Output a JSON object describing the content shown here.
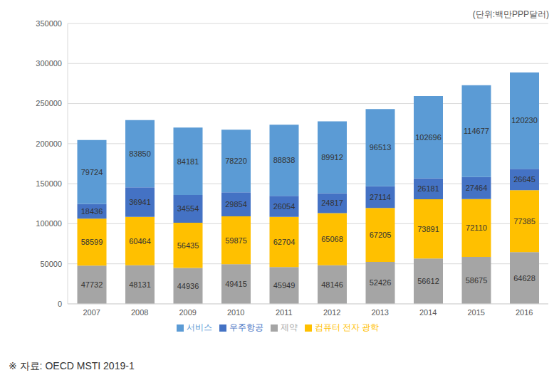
{
  "chart_data": {
    "type": "bar",
    "subtitle": "(단위:백만PPP달러)",
    "annotations": [
      "※ 자료: OECD MSTI 2019-1"
    ],
    "categories": [
      "2007",
      "2008",
      "2009",
      "2010",
      "2011",
      "2012",
      "2013",
      "2014",
      "2015",
      "2016"
    ],
    "series": [
      {
        "name": "제약",
        "color": "#a5a5a5",
        "values": [
          47732,
          48131,
          44936,
          49415,
          45949,
          48146,
          52426,
          56612,
          58675,
          64628
        ]
      },
      {
        "name": "컴퓨터 전자 광학",
        "color": "#ffc000",
        "values": [
          58599,
          60464,
          56435,
          59875,
          62704,
          65068,
          67205,
          73891,
          72110,
          77385
        ]
      },
      {
        "name": "우주항공",
        "color": "#4472c4",
        "values": [
          18436,
          36941,
          34554,
          29854,
          26054,
          24817,
          27114,
          26181,
          27464,
          26645
        ]
      },
      {
        "name": "서비스",
        "color": "#5b9bd5",
        "values": [
          79724,
          83850,
          84181,
          78220,
          88838,
          89912,
          96513,
          102696,
          114677,
          120230
        ]
      }
    ],
    "ylim": [
      0,
      350000
    ],
    "yticks": [
      0,
      50000,
      100000,
      150000,
      200000,
      250000,
      300000,
      350000
    ],
    "grid": true,
    "stacked": true,
    "data_labels": true,
    "legend": "bottom"
  }
}
